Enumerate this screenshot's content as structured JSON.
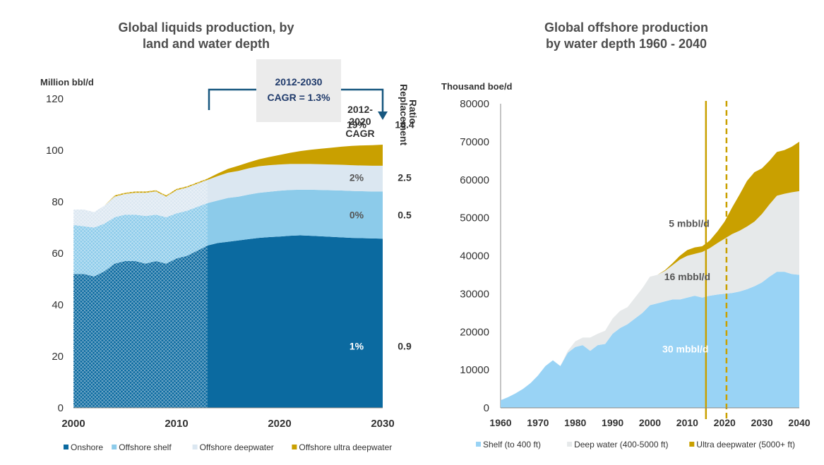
{
  "chart_data": [
    {
      "type": "area",
      "title": "Global liquids production, by land and water depth",
      "title_lines": [
        "Global liquids production, by",
        "land and water depth"
      ],
      "ylabel": "Million bbl/d",
      "xlim": [
        2000,
        2030
      ],
      "ylim": [
        0,
        120
      ],
      "xticks": [
        "2000",
        "2010",
        "2020",
        "2030"
      ],
      "yticks": [
        "0",
        "20",
        "40",
        "60",
        "80",
        "100",
        "120"
      ],
      "x": [
        2000,
        2001,
        2002,
        2003,
        2004,
        2005,
        2006,
        2007,
        2008,
        2009,
        2010,
        2011,
        2012,
        2013,
        2014,
        2015,
        2016,
        2017,
        2018,
        2019,
        2020,
        2021,
        2022,
        2023,
        2024,
        2025,
        2026,
        2027,
        2028,
        2029,
        2030
      ],
      "series": [
        {
          "name": "Onshore",
          "color": "#0b6aa0",
          "values": [
            52,
            52,
            51,
            53,
            56,
            57,
            57,
            56,
            57,
            56,
            58,
            59,
            61,
            63,
            64,
            64.5,
            65,
            65.5,
            66,
            66.3,
            66.5,
            66.8,
            67,
            66.8,
            66.6,
            66.4,
            66.2,
            66,
            65.9,
            65.8,
            65.7
          ]
        },
        {
          "name": "Offshore shelf",
          "color": "#8ccbea",
          "values": [
            19,
            18.5,
            19,
            18.5,
            18,
            18,
            18,
            18.5,
            18,
            18,
            17.5,
            17.5,
            17,
            16.5,
            16.5,
            17,
            17,
            17.3,
            17.5,
            17.6,
            17.8,
            17.8,
            17.7,
            17.9,
            18,
            18.1,
            18.2,
            18.2,
            18.2,
            18.2,
            18.3
          ]
        },
        {
          "name": "Offshore deepwater",
          "color": "#dbe7f1",
          "values": [
            6,
            6.5,
            6,
            7,
            8,
            8,
            8.5,
            9,
            9,
            8,
            9,
            9,
            9,
            9,
            9.5,
            9.8,
            10,
            10.2,
            10.3,
            10.3,
            10.2,
            10.1,
            10,
            10,
            10,
            10,
            10,
            10,
            10,
            10,
            10
          ]
        },
        {
          "name": "Offshore ultra deepwater",
          "color": "#c9a000",
          "values": [
            0,
            0,
            0,
            0,
            0.5,
            0.5,
            0.5,
            0.5,
            0.5,
            0.5,
            0.5,
            0.5,
            0.5,
            0.5,
            1,
            1.5,
            2,
            2.3,
            2.7,
            3.2,
            3.7,
            4.3,
            5,
            5.5,
            6,
            6.5,
            7,
            7.5,
            7.8,
            8,
            8.2
          ]
        }
      ],
      "annotation": {
        "cagr_box": "2012-2030",
        "cagr_box_value": "CAGR = 1.3%",
        "cagr_header": [
          "2012-",
          "2020",
          "CAGR"
        ],
        "ratio_header": [
          "Replacement",
          "Ratio"
        ]
      },
      "segment_cagr": [
        "19%",
        "2%",
        "0%",
        "1%"
      ],
      "segment_cagr_y": [
        110,
        89.5,
        75,
        24
      ],
      "replacement_ratio": [
        "16.4",
        "2.5",
        "0.5",
        "0.9"
      ],
      "hatch_until": 2013,
      "legend": [
        "Onshore",
        "Offshore shelf",
        "Offshore deepwater",
        "Offshore ultra deepwater"
      ],
      "legend_position": "bottom"
    },
    {
      "type": "area",
      "title": "Global offshore production by water depth 1960 - 2040",
      "title_lines": [
        "Global offshore production",
        "by water depth 1960 - 2040"
      ],
      "ylabel": "Thousand boe/d",
      "xlim": [
        1960,
        2040
      ],
      "ylim": [
        0,
        80000
      ],
      "xticks": [
        "1960",
        "1970",
        "1980",
        "1990",
        "2000",
        "2010",
        "2020",
        "2030",
        "2040"
      ],
      "yticks": [
        "0",
        "10000",
        "20000",
        "30000",
        "40000",
        "50000",
        "60000",
        "70000",
        "80000"
      ],
      "x": [
        1960,
        1962,
        1964,
        1966,
        1968,
        1970,
        1972,
        1974,
        1976,
        1978,
        1980,
        1982,
        1984,
        1986,
        1988,
        1990,
        1992,
        1994,
        1996,
        1998,
        2000,
        2002,
        2004,
        2006,
        2008,
        2010,
        2012,
        2014,
        2016,
        2018,
        2020,
        2022,
        2024,
        2026,
        2028,
        2030,
        2032,
        2034,
        2036,
        2038,
        2040
      ],
      "series": [
        {
          "name": "Shelf (to 400 ft)",
          "color": "#99d3f5",
          "values": [
            2000,
            2800,
            3800,
            5000,
            6500,
            8500,
            11000,
            12500,
            11000,
            14500,
            16000,
            16500,
            15000,
            16500,
            16800,
            19500,
            21000,
            22000,
            23500,
            25000,
            27000,
            27500,
            28000,
            28500,
            28500,
            29000,
            29500,
            29000,
            29500,
            29800,
            30000,
            30200,
            30600,
            31200,
            32000,
            33000,
            34500,
            35800,
            35800,
            35200,
            35000
          ]
        },
        {
          "name": "Deep water (400-5000 ft)",
          "color": "#e6e9ea",
          "values": [
            0,
            0,
            0,
            0,
            0,
            0,
            0,
            0,
            0,
            500,
            1500,
            2000,
            3500,
            3000,
            3500,
            4000,
            4500,
            4500,
            5500,
            6500,
            7500,
            7500,
            8000,
            9000,
            10500,
            11000,
            11000,
            12000,
            12500,
            13500,
            14500,
            15500,
            16000,
            16500,
            17000,
            18000,
            19000,
            20000,
            20500,
            21500,
            22000
          ]
        },
        {
          "name": "Ultra deepwater (5000+ ft)",
          "color": "#c9a000",
          "values": [
            0,
            0,
            0,
            0,
            0,
            0,
            0,
            0,
            0,
            0,
            0,
            0,
            0,
            0,
            0,
            0,
            0,
            0,
            0,
            0,
            0,
            0,
            200,
            500,
            1000,
            1500,
            1700,
            1500,
            2000,
            3000,
            4500,
            7000,
            9500,
            12000,
            13000,
            12000,
            11500,
            11500,
            11500,
            12000,
            13000
          ]
        }
      ],
      "vertical_lines": [
        {
          "x": 2015,
          "style": "solid",
          "color": "#c9a000"
        },
        {
          "x": 2020.5,
          "style": "dashed",
          "color": "#c9a000"
        }
      ],
      "annotations": [
        {
          "text": "5 mbbl/d",
          "x": 2010.5,
          "y": 48500
        },
        {
          "text": "16 mbbl/d",
          "x": 2010,
          "y": 34500
        },
        {
          "text": "30 mbbl/d",
          "x": 2009.5,
          "y": 15500
        }
      ],
      "legend": [
        "Shelf (to 400 ft)",
        "Deep water (400-5000 ft)",
        "Ultra deepwater (5000+ ft)"
      ],
      "legend_position": "bottom"
    }
  ]
}
